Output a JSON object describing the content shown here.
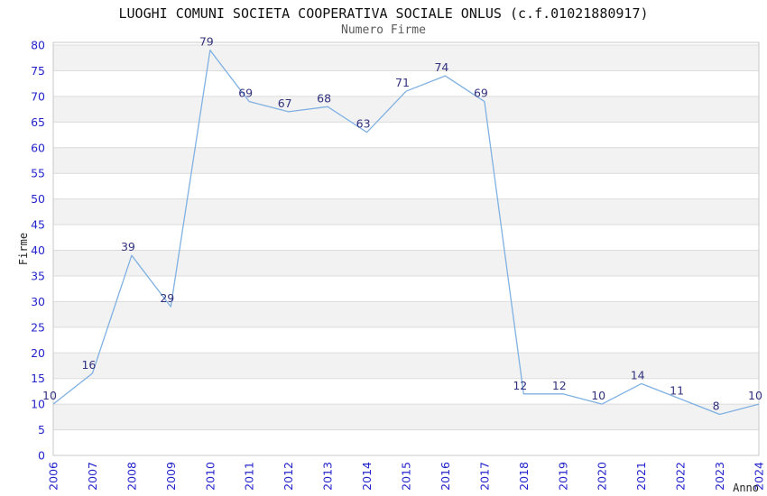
{
  "chart_data": {
    "type": "line",
    "title": "LUOGHI COMUNI SOCIETA COOPERATIVA SOCIALE ONLUS (c.f.01021880917)",
    "subtitle": "Numero Firme",
    "xlabel": "Anno",
    "ylabel": "Firme",
    "categories": [
      "2006",
      "2007",
      "2008",
      "2009",
      "2010",
      "2011",
      "2012",
      "2013",
      "2014",
      "2015",
      "2016",
      "2017",
      "2018",
      "2019",
      "2020",
      "2021",
      "2022",
      "2023",
      "2024"
    ],
    "values": [
      10,
      16,
      39,
      29,
      79,
      69,
      67,
      68,
      63,
      71,
      74,
      69,
      12,
      12,
      10,
      14,
      11,
      8,
      10
    ],
    "ylim": [
      0,
      80
    ],
    "ytick_step": 5,
    "yticks": [
      0,
      5,
      10,
      15,
      20,
      25,
      30,
      35,
      40,
      45,
      50,
      55,
      60,
      65,
      70,
      75,
      80
    ],
    "grid": true,
    "legend": "none",
    "band_ranges": [
      [
        5,
        10
      ],
      [
        15,
        20
      ],
      [
        25,
        30
      ],
      [
        35,
        40
      ],
      [
        45,
        50
      ],
      [
        55,
        60
      ],
      [
        65,
        70
      ],
      [
        75,
        80
      ]
    ],
    "colors": {
      "line": "#7fb1e2",
      "tick_labels": "#2424cc",
      "point_labels": "#32327f",
      "band": "#f2f2f2",
      "grid_line": "#dcdcdc",
      "plot_border": "#c8c8c8",
      "title": "#111111",
      "subtitle": "#5a5a5a",
      "axis_titles": "#222222",
      "background": "#ffffff"
    }
  }
}
